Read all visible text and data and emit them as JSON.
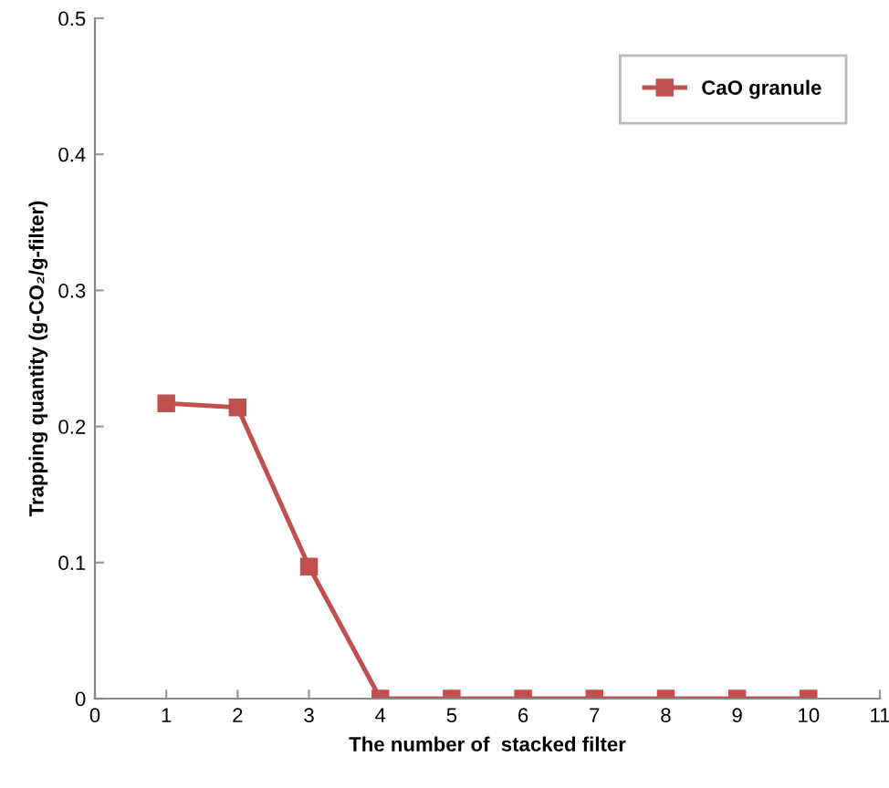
{
  "chart_data": {
    "type": "line",
    "xlabel": "The number of  stacked filter",
    "ylabel": "Trapping quantity (g-CO₂/g-filter)",
    "x": [
      1,
      2,
      3,
      4,
      5,
      6,
      7,
      8,
      9,
      10
    ],
    "series": [
      {
        "name": "CaO granule",
        "color": "#c0504d",
        "values": [
          0.217,
          0.214,
          0.097,
          0,
          0,
          0,
          0,
          0,
          0,
          0
        ]
      }
    ],
    "xlim": [
      0,
      11
    ],
    "xticks": [
      0,
      1,
      2,
      3,
      4,
      5,
      6,
      7,
      8,
      9,
      10,
      11
    ],
    "ylim": [
      0,
      0.5
    ],
    "yticks": [
      0,
      0.1,
      0.2,
      0.3,
      0.4,
      0.5
    ],
    "grid": false,
    "legend": "top right",
    "marker": "square",
    "line_style": "solid"
  }
}
